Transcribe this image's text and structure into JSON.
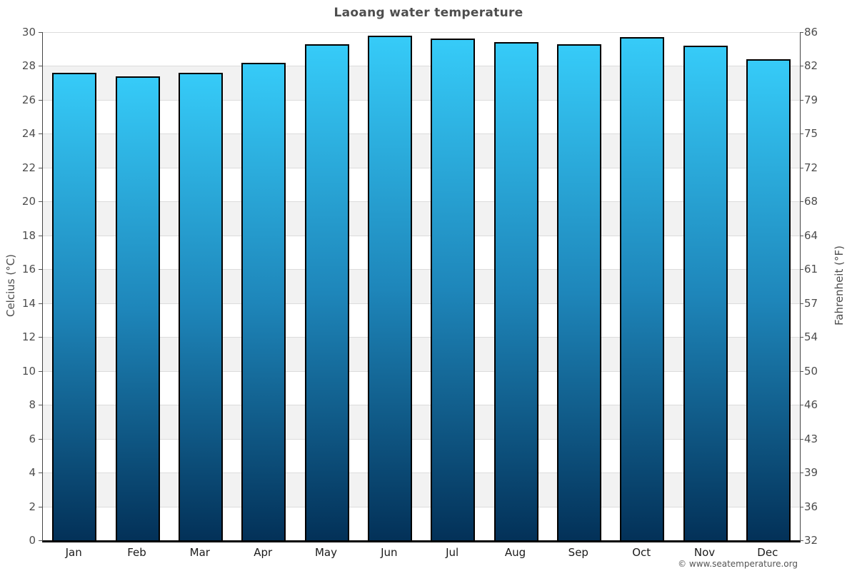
{
  "page": {
    "footer_copyright": "© www.seatemperature.org"
  },
  "chart_data": {
    "type": "bar",
    "title": "Laoang water temperature",
    "categories": [
      "Jan",
      "Feb",
      "Mar",
      "Apr",
      "May",
      "Jun",
      "Jul",
      "Aug",
      "Sep",
      "Oct",
      "Nov",
      "Dec"
    ],
    "values": [
      27.6,
      27.4,
      27.6,
      28.2,
      29.3,
      29.8,
      29.6,
      29.4,
      29.3,
      29.7,
      29.2,
      28.4
    ],
    "unit": "°C",
    "ylabel_left": "Celcius (°C)",
    "ylabel_right": "Fahrenheit (°F)",
    "ylim": [
      0,
      30
    ],
    "y_ticks_celsius": [
      30,
      28,
      26,
      24,
      22,
      20,
      18,
      16,
      14,
      12,
      10,
      8,
      6,
      4,
      2,
      0
    ],
    "y_tick_labels_fahrenheit": [
      "86",
      "82",
      "79",
      "75",
      "72",
      "68",
      "64",
      "61",
      "57",
      "54",
      "50",
      "46",
      "43",
      "39",
      "36",
      "32"
    ],
    "legend_position": "none",
    "grid": "alternating horizontal bands every 2 degrees with light gridlines",
    "colors": {
      "bar_gradient_top": "#36cbf8",
      "bar_gradient_mid": "#1e86ba",
      "bar_gradient_bottom": "#033158",
      "bar_border": "#000000",
      "band_light": "#ffffff",
      "band_gray": "#f2f2f2",
      "gridline": "#dcdcdc",
      "axis_line": "#444444",
      "bottom_axis_line": "#000000",
      "title_text": "#4d4d4d",
      "tick_text": "#4d4d4d",
      "month_text": "#1a1a1a",
      "copyright_text": "#555555"
    }
  }
}
